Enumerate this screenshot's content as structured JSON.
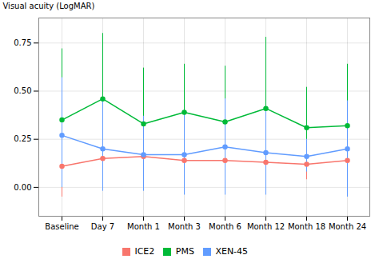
{
  "chart_data": {
    "type": "line",
    "categories": [
      "Baseline",
      "Day 7",
      "Month 1",
      "Month 3",
      "Month 6",
      "Month 12",
      "Month 18",
      "Month 24"
    ],
    "series": [
      {
        "name": "ICE2",
        "color": "#f8766d",
        "values": [
          0.11,
          0.15,
          0.16,
          0.14,
          0.14,
          0.13,
          0.12,
          0.14
        ],
        "upper": [
          0.47,
          0.27,
          0.3,
          0.27,
          0.26,
          0.26,
          0.2,
          0.24
        ],
        "lower": [
          -0.05,
          0.02,
          0.02,
          0.02,
          0.02,
          0.0,
          0.04,
          0.04
        ]
      },
      {
        "name": "PMS",
        "color": "#00ba38",
        "values": [
          0.35,
          0.46,
          0.33,
          0.39,
          0.34,
          0.41,
          0.31,
          0.32
        ],
        "upper": [
          0.72,
          0.8,
          0.62,
          0.64,
          0.63,
          0.78,
          0.52,
          0.64
        ],
        "lower": [
          0.0,
          0.12,
          0.05,
          0.14,
          0.06,
          0.04,
          0.1,
          0.01
        ]
      },
      {
        "name": "XEN-45",
        "color": "#619cff",
        "values": [
          0.27,
          0.2,
          0.17,
          0.17,
          0.21,
          0.18,
          0.16,
          0.2
        ],
        "upper": [
          0.57,
          0.45,
          0.37,
          0.38,
          0.46,
          0.4,
          0.25,
          0.45
        ],
        "lower": [
          0.0,
          -0.02,
          -0.02,
          -0.04,
          -0.04,
          -0.04,
          0.08,
          -0.05
        ]
      }
    ],
    "ylabel": "Visual acuity (LogMAR)",
    "ylim": [
      -0.15,
      0.88
    ],
    "yticks": [
      {
        "value": 0.0,
        "label": "0.00"
      },
      0.25,
      {
        "value": 0.5,
        "label": "0.50"
      },
      0.75
    ],
    "grid": true,
    "legend": "bottom",
    "marker": "circle"
  }
}
